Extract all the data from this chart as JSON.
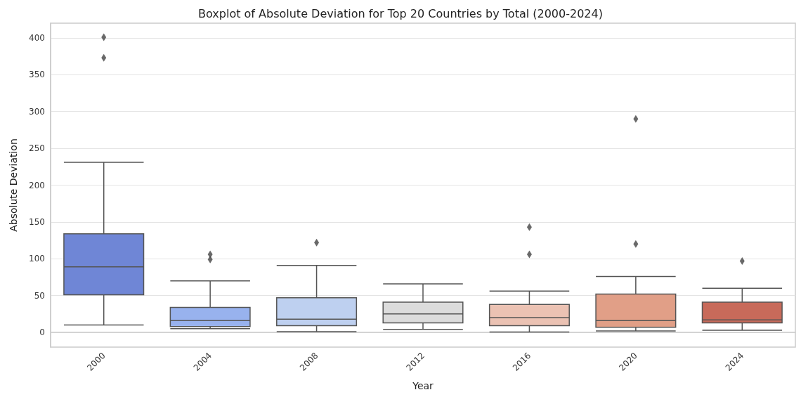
{
  "chart_data": {
    "type": "box",
    "title": "Boxplot of Absolute Deviation for Top 20 Countries by Total (2000-2024)",
    "xlabel": "Year",
    "ylabel": "Absolute Deviation",
    "categories": [
      "2000",
      "2004",
      "2008",
      "2012",
      "2016",
      "2020",
      "2024"
    ],
    "colors": [
      "#6f86d6",
      "#98b2ee",
      "#bed0f0",
      "#dcdcdc",
      "#ebc2b3",
      "#e19f87",
      "#c86a5a"
    ],
    "boxes": [
      {
        "low": 10,
        "q1": 51,
        "median": 89,
        "q3": 134,
        "high": 231,
        "outliers": [
          373,
          401
        ]
      },
      {
        "low": 5,
        "q1": 8,
        "median": 16,
        "q3": 34,
        "high": 70,
        "outliers": [
          99,
          106
        ]
      },
      {
        "low": 1,
        "q1": 9,
        "median": 18,
        "q3": 47,
        "high": 91,
        "outliers": [
          122
        ]
      },
      {
        "low": 4,
        "q1": 13,
        "median": 25,
        "q3": 41,
        "high": 66
      },
      {
        "low": 0.5,
        "q1": 9,
        "median": 20,
        "q3": 38,
        "high": 56,
        "outliers": [
          106,
          143
        ]
      },
      {
        "low": 2,
        "q1": 7,
        "median": 16,
        "q3": 52,
        "high": 76,
        "outliers": [
          120,
          290
        ]
      },
      {
        "low": 3,
        "q1": 13,
        "median": 17,
        "q3": 41,
        "high": 60,
        "outliers": [
          97
        ]
      }
    ],
    "ylim": [
      -20,
      420
    ],
    "yticks": [
      0,
      50,
      100,
      150,
      200,
      250,
      300,
      350,
      400
    ],
    "grid": "y",
    "marker": "diamond"
  }
}
